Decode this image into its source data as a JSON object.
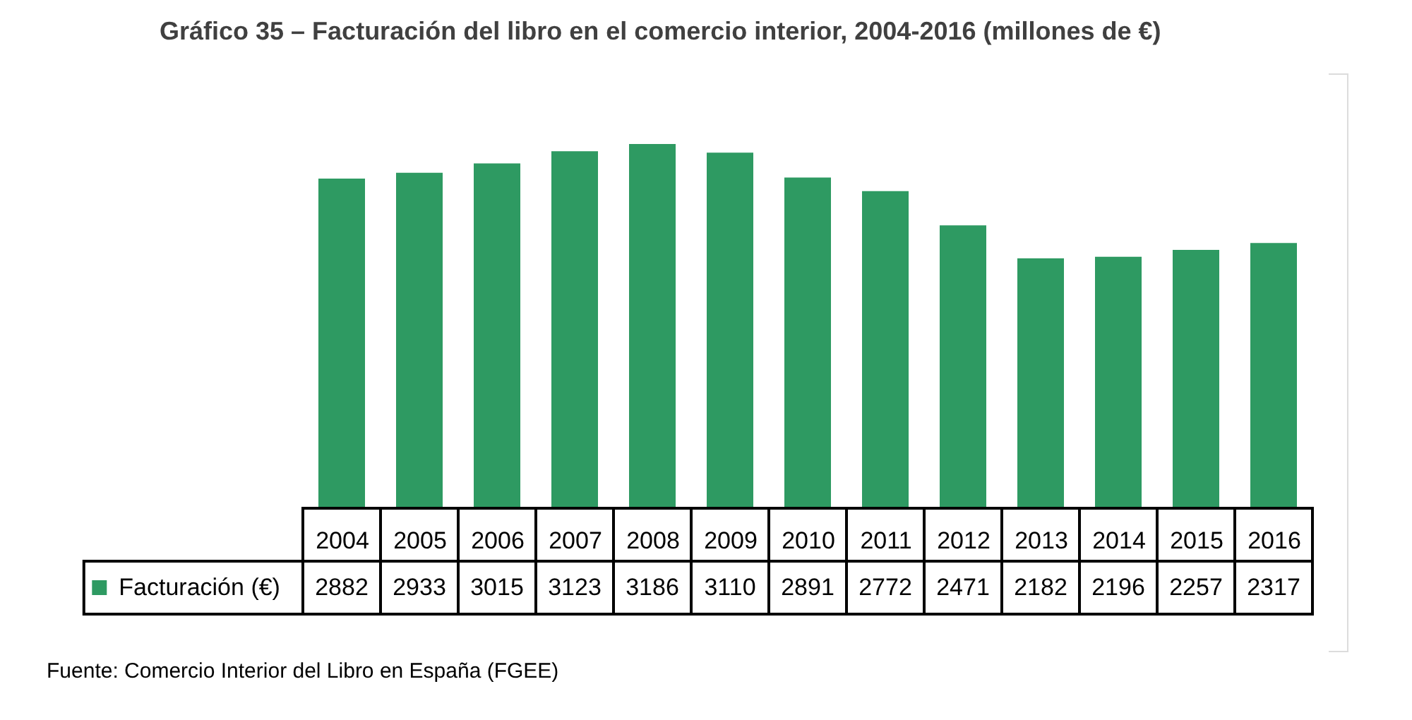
{
  "chart_data": {
    "type": "bar",
    "title": "Gráfico  35 – Facturación del libro en el comercio interior, 2004-2016 (millones de €)",
    "categories": [
      "2004",
      "2005",
      "2006",
      "2007",
      "2008",
      "2009",
      "2010",
      "2011",
      "2012",
      "2013",
      "2014",
      "2015",
      "2016"
    ],
    "series": [
      {
        "name": "Facturación (€)",
        "color": "#2e9a62",
        "values": [
          2882,
          2933,
          3015,
          3123,
          3186,
          3110,
          2891,
          2772,
          2471,
          2182,
          2196,
          2257,
          2317
        ]
      }
    ],
    "data_labels": true,
    "legend": "bottom left",
    "annotations": [
      "Fuente: Comercio Interior del Libro en España (FGEE)"
    ]
  }
}
